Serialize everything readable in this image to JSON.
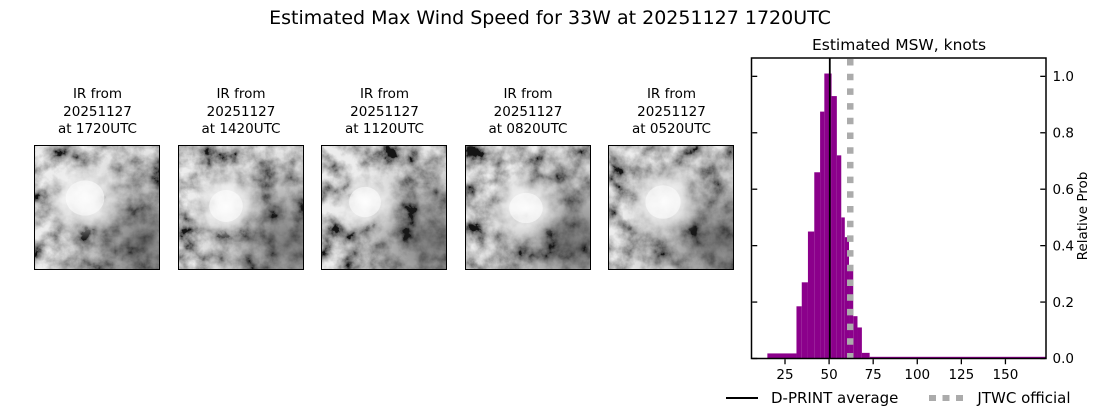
{
  "main": {
    "title": "Estimated Max Wind Speed for 33W at 20251127 1720UTC"
  },
  "panels": [
    {
      "label": "IR from\n20251127\nat 1720UTC"
    },
    {
      "label": "IR from\n20251127\nat 1420UTC"
    },
    {
      "label": "IR from\n20251127\nat 1120UTC"
    },
    {
      "label": "IR from\n20251127\nat 0820UTC"
    },
    {
      "label": "IR from\n20251127\nat 0520UTC"
    }
  ],
  "chart_data": {
    "type": "bar",
    "title": "Estimated MSW, knots",
    "ylabel": "Relative Prob",
    "xlabel": "",
    "xlim": [
      6,
      173
    ],
    "ylim": [
      0,
      1.065
    ],
    "xticks": [
      25,
      50,
      75,
      100,
      125,
      150
    ],
    "ytick_labels": [
      "0.0",
      "0.2",
      "0.4",
      "0.6",
      "0.8",
      "1.0"
    ],
    "grid": false,
    "legend_position": "bottom",
    "bar_color": "#8B008B",
    "bars": [
      {
        "x0": 15.0,
        "x1": 31.5,
        "h": 0.018
      },
      {
        "x0": 31.5,
        "x1": 34.5,
        "h": 0.185
      },
      {
        "x0": 34.5,
        "x1": 38.0,
        "h": 0.27
      },
      {
        "x0": 38.0,
        "x1": 41.6,
        "h": 0.45
      },
      {
        "x0": 41.6,
        "x1": 44.9,
        "h": 0.66
      },
      {
        "x0": 44.9,
        "x1": 47.3,
        "h": 0.875
      },
      {
        "x0": 47.3,
        "x1": 51.4,
        "h": 1.01
      },
      {
        "x0": 51.4,
        "x1": 54.4,
        "h": 0.93
      },
      {
        "x0": 54.4,
        "x1": 56.9,
        "h": 0.72
      },
      {
        "x0": 56.9,
        "x1": 58.9,
        "h": 0.5
      },
      {
        "x0": 58.9,
        "x1": 61.3,
        "h": 0.43
      },
      {
        "x0": 61.3,
        "x1": 63.7,
        "h": 0.33
      },
      {
        "x0": 63.7,
        "x1": 66.1,
        "h": 0.15
      },
      {
        "x0": 66.1,
        "x1": 68.6,
        "h": 0.11
      },
      {
        "x0": 68.6,
        "x1": 73.0,
        "h": 0.02
      },
      {
        "x0": 73.0,
        "x1": 172.8,
        "h": 0.006
      }
    ],
    "avg_line": {
      "label": "D-PRINT average",
      "x_knots": 50.4,
      "color": "#000000",
      "style": "solid"
    },
    "jtwc_line": {
      "label": "JTWC official",
      "x_knots": 62,
      "color": "#ababab",
      "style": "dotted"
    }
  }
}
